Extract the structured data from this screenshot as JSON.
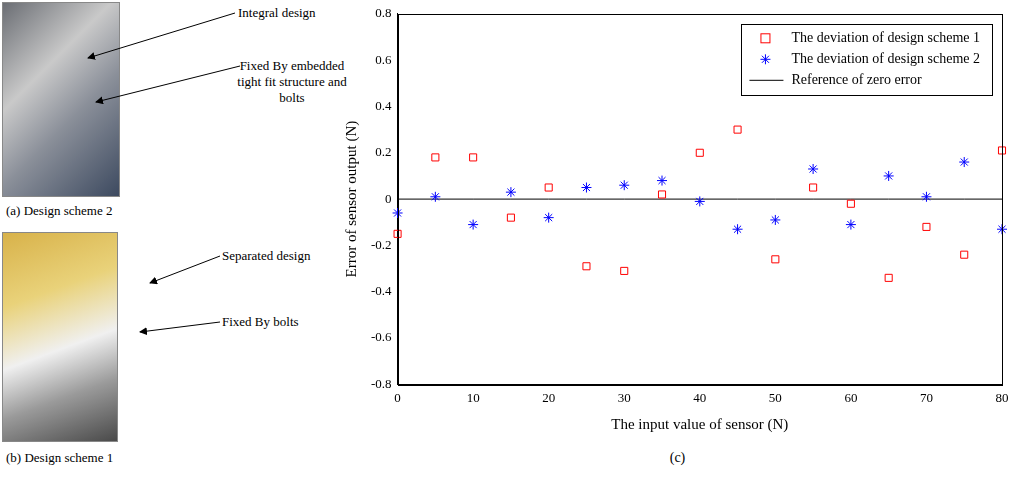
{
  "figure": {
    "panels": [
      {
        "label": "(a) Design scheme 2",
        "annotations": [
          "Integral design",
          "Fixed By embedded tight fit structure and bolts"
        ]
      },
      {
        "label": "(b) Design scheme 1",
        "annotations": [
          "Separated design",
          "Fixed By bolts"
        ]
      }
    ],
    "chart_label": "(c)"
  },
  "chart_data": {
    "type": "scatter",
    "xlabel": "The input value of sensor (N)",
    "ylabel": "Error of sensor output (N)",
    "x": [
      0,
      5,
      10,
      15,
      20,
      25,
      30,
      35,
      40,
      45,
      50,
      55,
      60,
      65,
      70,
      75,
      80
    ],
    "series": [
      {
        "name": "The deviation of design scheme 1",
        "color": "#ff0000",
        "marker": "square",
        "values": [
          -0.15,
          0.18,
          0.18,
          -0.08,
          0.05,
          -0.29,
          -0.31,
          0.02,
          0.2,
          0.3,
          -0.26,
          0.05,
          -0.02,
          -0.34,
          -0.12,
          -0.24,
          0.21
        ]
      },
      {
        "name": "The deviation of design scheme 2",
        "color": "#0000ff",
        "marker": "star",
        "values": [
          -0.06,
          0.01,
          -0.11,
          0.03,
          -0.08,
          0.05,
          0.06,
          0.08,
          -0.01,
          -0.13,
          -0.09,
          0.13,
          -0.11,
          0.1,
          0.01,
          0.16,
          -0.13
        ]
      },
      {
        "name": "Reference of zero error",
        "type": "line",
        "color": "#000000",
        "line_style": "solid",
        "values": [
          0,
          0,
          0,
          0,
          0,
          0,
          0,
          0,
          0,
          0,
          0,
          0,
          0,
          0,
          0,
          0,
          0
        ]
      }
    ],
    "xlim": [
      0,
      80
    ],
    "xticks": [
      0,
      10,
      20,
      30,
      40,
      50,
      60,
      70,
      80
    ],
    "ylim": [
      -0.8,
      0.8
    ],
    "yticks": [
      -0.8,
      -0.6,
      -0.4,
      -0.2,
      0,
      0.2,
      0.4,
      0.6,
      0.8
    ],
    "grid": false,
    "legend": "upper right"
  }
}
